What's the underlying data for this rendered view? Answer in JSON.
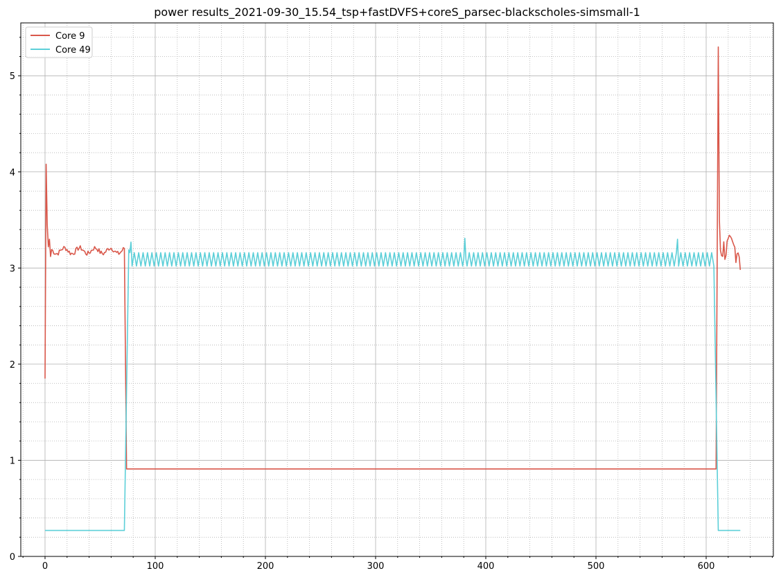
{
  "chart_data": {
    "type": "line",
    "title": "power results_2021-09-30_15.54_tsp+fastDVFS+coreS_parsec-blackscholes-simsmall-1",
    "xlabel": "",
    "ylabel": "",
    "xlim": [
      -22,
      661
    ],
    "ylim": [
      0,
      5.55
    ],
    "xticks": [
      0,
      100,
      200,
      300,
      400,
      500,
      600
    ],
    "yticks": [
      0,
      1,
      2,
      3,
      4,
      5
    ],
    "x_minor_step": 20,
    "y_minor_step": 0.2,
    "grid": true,
    "legend_position": "upper-left",
    "series": [
      {
        "name": "Core 9",
        "color": "#d9574a",
        "pattern": {
          "kind": "core9",
          "start_value": 1.85,
          "spike_value": 4.08,
          "active_level": 3.18,
          "active_amplitude": 0.05,
          "active_end": 72,
          "drop_end": 74,
          "idle_level": 0.91,
          "idle_end": 609,
          "end_spike_x": 611,
          "end_spike_value": 5.3,
          "tail_level": 3.2,
          "tail_end": 631,
          "final_value": 2.98
        }
      },
      {
        "name": "Core 49",
        "color": "#5ccfd8",
        "pattern": {
          "kind": "core49",
          "idle_level": 0.27,
          "idle_end": 72,
          "rise_end": 76,
          "active_level": 3.09,
          "active_amplitude": 0.07,
          "active_period": 4,
          "active_end": 607,
          "spike_points": [
            [
              78,
              3.27
            ],
            [
              381,
              3.31
            ],
            [
              574,
              3.3
            ]
          ],
          "fall_end": 611,
          "tail_level": 0.27,
          "tail_end": 631
        }
      }
    ]
  }
}
